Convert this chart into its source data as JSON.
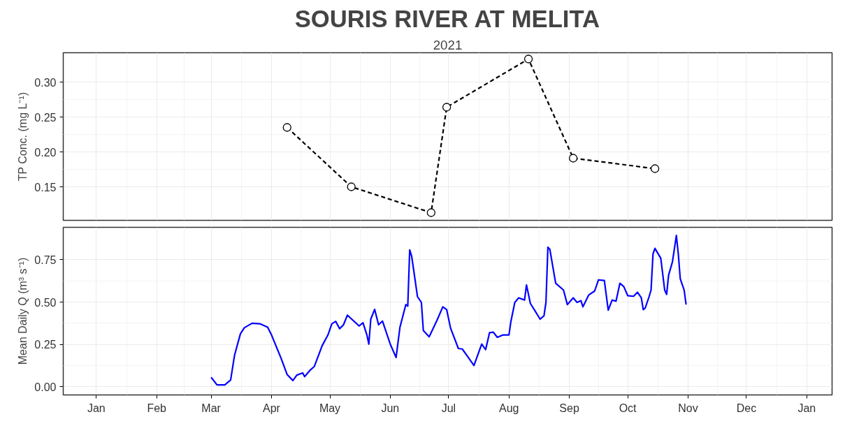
{
  "chart_data": [
    {
      "type": "line",
      "title": "SOURIS RIVER AT MELITA",
      "subtitle": "2021",
      "ylabel": "TP Conc. (mg L⁻¹)",
      "marker": "circle",
      "line_style": "dashed",
      "grid": true,
      "tick_labels": "y",
      "xlim": [
        "2020-12-15",
        "2022-01-14"
      ],
      "ylim": [
        0.102,
        0.342
      ],
      "xticks": [
        "2021-01-01",
        "2021-02-01",
        "2021-03-01",
        "2021-04-01",
        "2021-05-01",
        "2021-06-01",
        "2021-07-01",
        "2021-08-01",
        "2021-09-01",
        "2021-10-01",
        "2021-11-01",
        "2021-12-01",
        "2022-01-01"
      ],
      "yticks": [
        {
          "value": 0.15,
          "label": "0.15"
        },
        {
          "value": 0.2,
          "label": "0.20"
        },
        {
          "value": 0.25,
          "label": "0.25"
        },
        {
          "value": 0.3,
          "label": "0.30"
        }
      ],
      "x": [
        "2021-04-09",
        "2021-05-12",
        "2021-06-22",
        "2021-06-30",
        "2021-08-11",
        "2021-09-03",
        "2021-10-15"
      ],
      "series": [
        {
          "color": "#000000",
          "values": [
            0.235,
            0.15,
            0.113,
            0.264,
            0.333,
            0.191,
            0.176
          ]
        }
      ]
    },
    {
      "type": "line",
      "ylabel": "Mean Daily Q (m³ s⁻¹)",
      "marker": "none",
      "line_style": "solid",
      "grid": true,
      "xlim": [
        "2020-12-15",
        "2022-01-14"
      ],
      "ylim": [
        -0.048,
        0.941
      ],
      "xticks": [
        {
          "value": "2021-01-01",
          "label": "Jan"
        },
        {
          "value": "2021-02-01",
          "label": "Feb"
        },
        {
          "value": "2021-03-01",
          "label": "Mar"
        },
        {
          "value": "2021-04-01",
          "label": "Apr"
        },
        {
          "value": "2021-05-01",
          "label": "May"
        },
        {
          "value": "2021-06-01",
          "label": "Jun"
        },
        {
          "value": "2021-07-01",
          "label": "Jul"
        },
        {
          "value": "2021-08-01",
          "label": "Aug"
        },
        {
          "value": "2021-09-01",
          "label": "Sep"
        },
        {
          "value": "2021-10-01",
          "label": "Oct"
        },
        {
          "value": "2021-11-01",
          "label": "Nov"
        },
        {
          "value": "2021-12-01",
          "label": "Dec"
        },
        {
          "value": "2022-01-01",
          "label": "Jan"
        }
      ],
      "yticks": [
        {
          "value": 0,
          "label": "0.00"
        },
        {
          "value": 0.25,
          "label": "0.25"
        },
        {
          "value": 0.5,
          "label": "0.50"
        },
        {
          "value": 0.75,
          "label": "0.75"
        }
      ],
      "x": [
        "2021-03-01",
        "2021-03-04",
        "2021-03-08",
        "2021-03-11",
        "2021-03-13",
        "2021-03-16",
        "2021-03-18",
        "2021-03-22",
        "2021-03-26",
        "2021-03-30",
        "2021-04-01",
        "2021-04-06",
        "2021-04-09",
        "2021-04-12",
        "2021-04-14",
        "2021-04-17",
        "2021-04-18",
        "2021-04-21",
        "2021-04-23",
        "2021-04-27",
        "2021-04-30",
        "2021-05-02",
        "2021-05-04",
        "2021-05-06",
        "2021-05-08",
        "2021-05-10",
        "2021-05-16",
        "2021-05-18",
        "2021-05-20",
        "2021-05-21",
        "2021-05-22",
        "2021-05-24",
        "2021-05-26",
        "2021-05-28",
        "2021-06-01",
        "2021-06-04",
        "2021-06-06",
        "2021-06-09",
        "2021-06-10",
        "2021-06-11",
        "2021-06-12",
        "2021-06-15",
        "2021-06-17",
        "2021-06-18",
        "2021-06-21",
        "2021-06-25",
        "2021-06-28",
        "2021-06-30",
        "2021-07-02",
        "2021-07-06",
        "2021-07-08",
        "2021-07-12",
        "2021-07-14",
        "2021-07-18",
        "2021-07-20",
        "2021-07-22",
        "2021-07-24",
        "2021-07-26",
        "2021-07-29",
        "2021-08-01",
        "2021-08-02",
        "2021-08-04",
        "2021-08-06",
        "2021-08-09",
        "2021-08-10",
        "2021-08-12",
        "2021-08-14",
        "2021-08-17",
        "2021-08-19",
        "2021-08-20",
        "2021-08-21",
        "2021-08-22",
        "2021-08-25",
        "2021-08-29",
        "2021-08-31",
        "2021-09-03",
        "2021-09-05",
        "2021-09-07",
        "2021-09-08",
        "2021-09-11",
        "2021-09-14",
        "2021-09-16",
        "2021-09-19",
        "2021-09-21",
        "2021-09-23",
        "2021-09-25",
        "2021-09-27",
        "2021-09-29",
        "2021-10-01",
        "2021-10-04",
        "2021-10-06",
        "2021-10-08",
        "2021-10-09",
        "2021-10-10",
        "2021-10-12",
        "2021-10-13",
        "2021-10-14",
        "2021-10-15",
        "2021-10-18",
        "2021-10-20",
        "2021-10-21",
        "2021-10-22",
        "2021-10-24",
        "2021-10-26",
        "2021-10-27",
        "2021-10-28",
        "2021-10-30",
        "2021-10-31"
      ],
      "series": [
        {
          "color": "#0000ff",
          "values": [
            0.056,
            0.011,
            0.011,
            0.04,
            0.186,
            0.312,
            0.348,
            0.375,
            0.372,
            0.352,
            0.306,
            0.166,
            0.073,
            0.037,
            0.069,
            0.082,
            0.06,
            0.1,
            0.12,
            0.242,
            0.306,
            0.372,
            0.386,
            0.343,
            0.366,
            0.423,
            0.359,
            0.378,
            0.306,
            0.252,
            0.399,
            0.457,
            0.366,
            0.388,
            0.252,
            0.173,
            0.352,
            0.485,
            0.476,
            0.808,
            0.771,
            0.532,
            0.498,
            0.332,
            0.295,
            0.392,
            0.472,
            0.455,
            0.346,
            0.226,
            0.223,
            0.159,
            0.126,
            0.252,
            0.219,
            0.319,
            0.322,
            0.292,
            0.306,
            0.306,
            0.386,
            0.498,
            0.525,
            0.512,
            0.601,
            0.492,
            0.455,
            0.399,
            0.419,
            0.498,
            0.824,
            0.811,
            0.611,
            0.571,
            0.485,
            0.525,
            0.498,
            0.508,
            0.472,
            0.542,
            0.565,
            0.631,
            0.627,
            0.452,
            0.512,
            0.505,
            0.611,
            0.591,
            0.538,
            0.534,
            0.558,
            0.525,
            0.455,
            0.465,
            0.532,
            0.571,
            0.784,
            0.817,
            0.758,
            0.571,
            0.545,
            0.658,
            0.738,
            0.893,
            0.784,
            0.638,
            0.571,
            0.485
          ]
        }
      ]
    }
  ]
}
